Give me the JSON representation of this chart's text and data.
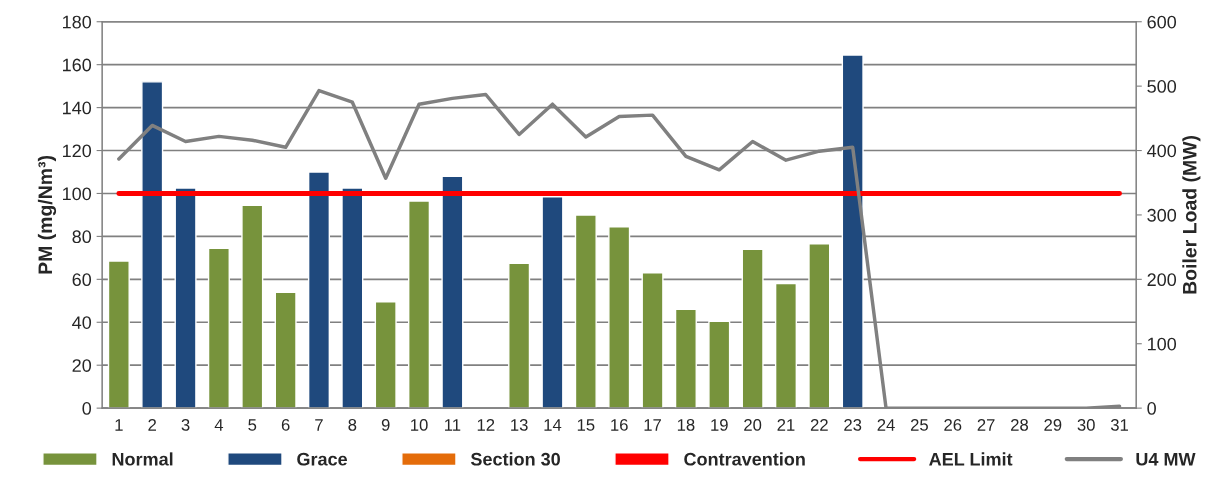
{
  "chart_data": {
    "type": "bar",
    "ylabel": "PM (mg/Nm³)",
    "y2label": "Boiler Load (MW)",
    "categories": [
      "1",
      "2",
      "3",
      "4",
      "5",
      "6",
      "7",
      "8",
      "9",
      "10",
      "11",
      "12",
      "13",
      "14",
      "15",
      "16",
      "17",
      "18",
      "19",
      "20",
      "21",
      "22",
      "23",
      "24",
      "25",
      "26",
      "27",
      "28",
      "29",
      "30",
      "31"
    ],
    "series": [
      {
        "name": "Normal",
        "color": "#77933c",
        "values": [
          68.5,
          null,
          null,
          74.5,
          94.5,
          54,
          null,
          null,
          49.5,
          96.5,
          null,
          null,
          67.5,
          null,
          90,
          84.5,
          63,
          46,
          40.5,
          74,
          58,
          76.5,
          null,
          null,
          null,
          null,
          null,
          null,
          null,
          null,
          null
        ]
      },
      {
        "name": "Grace",
        "color": "#1f497d",
        "values": [
          null,
          152,
          102.5,
          null,
          null,
          null,
          110,
          102.5,
          null,
          null,
          108,
          null,
          null,
          98.5,
          null,
          null,
          null,
          null,
          null,
          null,
          null,
          null,
          164.5,
          null,
          null,
          null,
          null,
          null,
          null,
          null,
          null
        ]
      },
      {
        "name": "Section 30",
        "color": "#e46c0a",
        "values": [
          null,
          null,
          null,
          null,
          null,
          null,
          null,
          null,
          null,
          null,
          null,
          null,
          null,
          null,
          null,
          null,
          null,
          null,
          null,
          null,
          null,
          null,
          null,
          null,
          null,
          null,
          null,
          null,
          null,
          null,
          null
        ]
      },
      {
        "name": "Contravention",
        "color": "#ff0000",
        "values": [
          null,
          null,
          null,
          null,
          null,
          null,
          null,
          null,
          null,
          null,
          null,
          null,
          null,
          null,
          null,
          null,
          null,
          null,
          null,
          null,
          null,
          null,
          null,
          null,
          null,
          null,
          null,
          null,
          null,
          null,
          null
        ]
      },
      {
        "name": "AEL Limit",
        "type": "line",
        "color": "#ff0000",
        "values": [
          100,
          100,
          100,
          100,
          100,
          100,
          100,
          100,
          100,
          100,
          100,
          100,
          100,
          100,
          100,
          100,
          100,
          100,
          100,
          100,
          100,
          100,
          100,
          100,
          100,
          100,
          100,
          100,
          100,
          100,
          100
        ]
      },
      {
        "name": "U4 MW",
        "type": "line",
        "axis": "y2",
        "color": "#808080",
        "values": [
          387,
          439,
          414,
          422,
          416,
          405,
          493,
          475,
          357,
          472,
          481,
          487,
          425,
          472,
          421,
          453,
          455,
          391,
          370,
          414,
          385,
          399,
          405,
          0,
          0,
          0,
          0,
          0,
          0,
          0,
          3
        ]
      }
    ],
    "ylim": [
      0,
      180
    ],
    "yticks": [
      0,
      20,
      40,
      60,
      80,
      100,
      120,
      140,
      160,
      180
    ],
    "y2lim": [
      0,
      600
    ],
    "y2ticks": [
      0,
      100,
      200,
      300,
      400,
      500,
      600
    ],
    "grid": "y",
    "legend": "bottom"
  }
}
